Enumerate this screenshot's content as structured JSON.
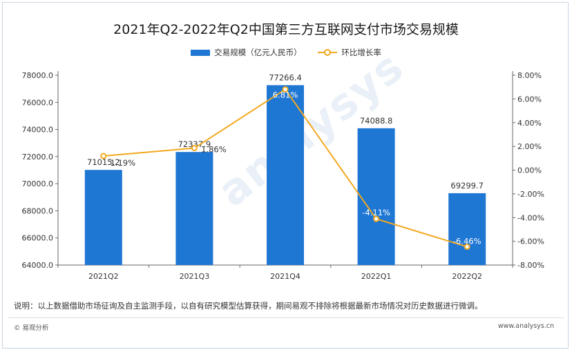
{
  "chart_data": {
    "type": "bar",
    "title": "2021年Q2-2022年Q2中国第三方互联网支付市场交易规模",
    "categories": [
      "2021Q2",
      "2021Q3",
      "2021Q4",
      "2022Q1",
      "2022Q2"
    ],
    "series": [
      {
        "name": "交易规模（亿元人民币）",
        "type": "bar",
        "axis": "left",
        "values": [
          71015.2,
          72337.9,
          77266.4,
          74088.8,
          69299.7
        ],
        "labels": [
          "71015.2",
          "72337.9",
          "77266.4",
          "74088.8",
          "69299.7"
        ]
      },
      {
        "name": "环比增长率",
        "type": "line",
        "axis": "right",
        "values": [
          1.19,
          1.86,
          6.81,
          -4.11,
          -6.46
        ],
        "labels": [
          "1.19%",
          "1.86%",
          "6.81%",
          "-4.11%",
          "-6.46%"
        ]
      }
    ],
    "left_axis": {
      "min": 64000,
      "max": 78000,
      "ticks": [
        "64000.0",
        "66000.0",
        "68000.0",
        "70000.0",
        "72000.0",
        "74000.0",
        "76000.0",
        "78000.0"
      ]
    },
    "right_axis": {
      "min": -8,
      "max": 8,
      "ticks": [
        "-8.00%",
        "-6.00%",
        "-4.00%",
        "-2.00%",
        "0.00%",
        "2.00%",
        "4.00%",
        "6.00%",
        "8.00%"
      ]
    },
    "colors": {
      "bar": "#1f77d4",
      "line": "#f2a81d",
      "axis": "#666666",
      "text": "#333333"
    }
  },
  "note": "说明：以上数据借助市场征询及自主监测手段，以自有研究模型估算获得，期间易观不排除将根据最新市场情况对历史数据进行微调。",
  "brand": "© 易观分析",
  "site": "www.analysys.cn"
}
